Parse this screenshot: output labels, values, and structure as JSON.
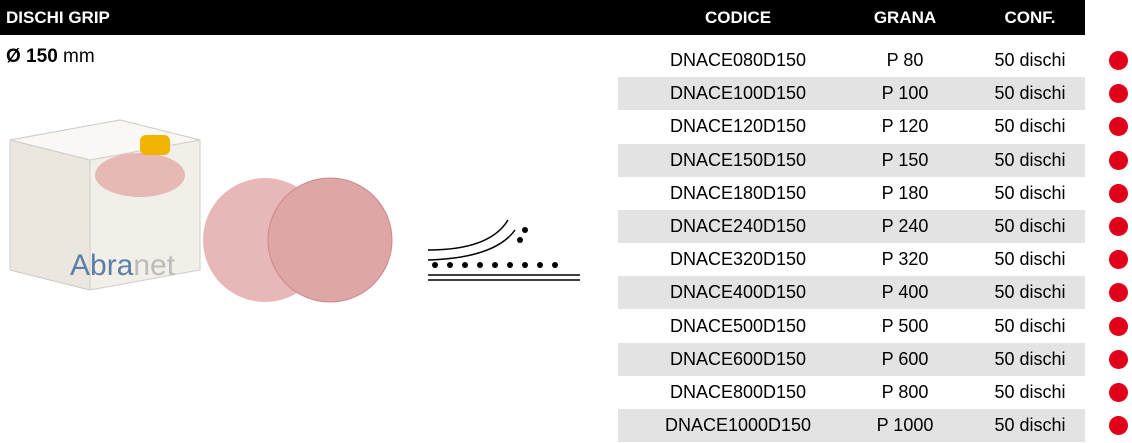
{
  "header": {
    "title": "DISCHI GRIP",
    "columns": [
      "CODICE",
      "GRANA",
      "CONF."
    ]
  },
  "size": {
    "value": "Ø 150",
    "unit": "mm"
  },
  "image": {
    "brand_a": "Abra",
    "brand_b": "net"
  },
  "table": {
    "rows": [
      [
        "DNACE080D150",
        "P 80",
        "50 dischi"
      ],
      [
        "DNACE100D150",
        "P 100",
        "50 dischi"
      ],
      [
        "DNACE120D150",
        "P 120",
        "50 dischi"
      ],
      [
        "DNACE150D150",
        "P 150",
        "50 dischi"
      ],
      [
        "DNACE180D150",
        "P 180",
        "50 dischi"
      ],
      [
        "DNACE240D150",
        "P 240",
        "50 dischi"
      ],
      [
        "DNACE320D150",
        "P 320",
        "50 dischi"
      ],
      [
        "DNACE400D150",
        "P 400",
        "50 dischi"
      ],
      [
        "DNACE500D150",
        "P 500",
        "50 dischi"
      ],
      [
        "DNACE600D150",
        "P 600",
        "50 dischi"
      ],
      [
        "DNACE800D150",
        "P 800",
        "50 dischi"
      ],
      [
        "DNACE1000D150",
        "P 1000",
        "50 dischi"
      ]
    ]
  }
}
